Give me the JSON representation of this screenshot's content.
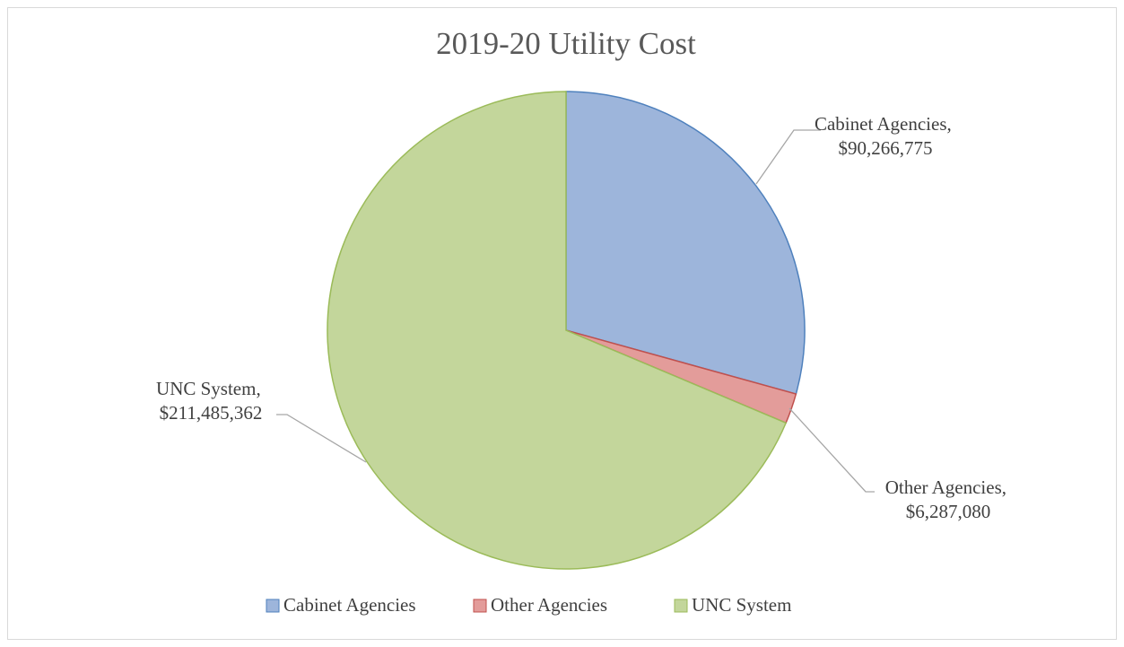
{
  "chart_data": {
    "type": "pie",
    "title": "2019-20 Utility Cost",
    "categories": [
      "Cabinet Agencies",
      "Other Agencies",
      "UNC System"
    ],
    "values": [
      90266775,
      6287080,
      211485362
    ],
    "value_labels": [
      "Cabinet Agencies, $90,266,775",
      "Other Agencies, $6,287,080",
      "UNC System, $211,485,362"
    ],
    "colors": [
      "#9db5db",
      "#e39c9a",
      "#c3d69b"
    ],
    "edge_colors": [
      "#4f81bd",
      "#c0504d",
      "#9bbb59"
    ],
    "legend": "bottom"
  }
}
